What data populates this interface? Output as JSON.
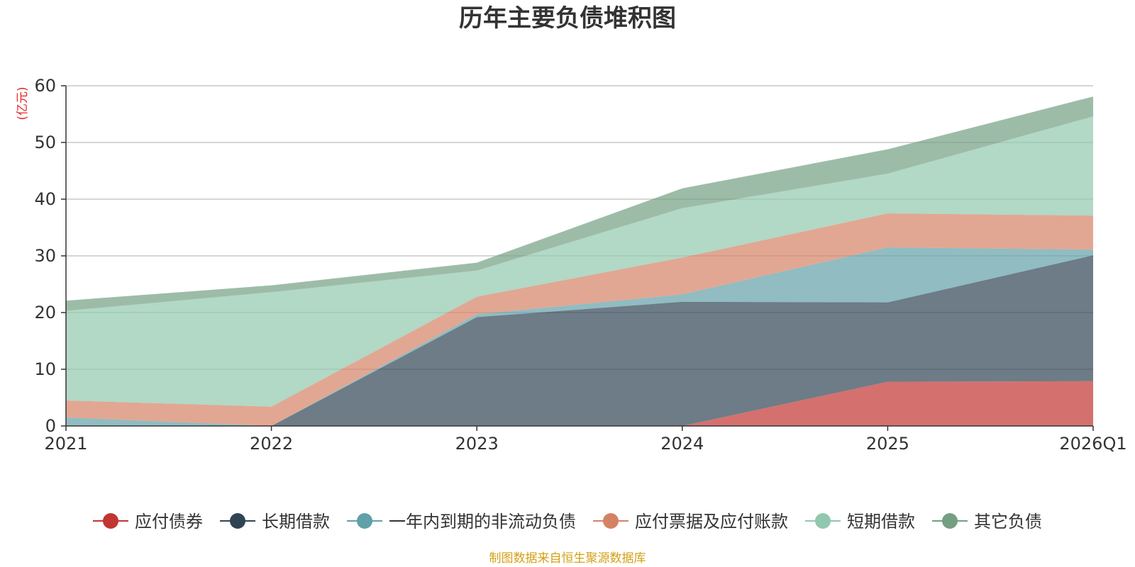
{
  "chart_data": {
    "type": "area",
    "stacked": true,
    "title": "历年主要负债堆积图",
    "unit_label": "(亿元)",
    "categories": [
      "2021",
      "2022",
      "2023",
      "2024",
      "2025",
      "2026Q1"
    ],
    "ylim": [
      0,
      60
    ],
    "yticks": [
      0,
      10,
      20,
      30,
      40,
      50,
      60
    ],
    "grid": true,
    "legend_position": "bottom",
    "series": [
      {
        "name": "应付债券",
        "color": "#c23531",
        "values": [
          0,
          0,
          0,
          0,
          7.8,
          7.9
        ]
      },
      {
        "name": "长期借款",
        "color": "#2f4554",
        "values": [
          0,
          0,
          19.2,
          21.9,
          14.0,
          22.2
        ]
      },
      {
        "name": "一年内到期的非流动负债",
        "color": "#61a0a8",
        "values": [
          1.5,
          0,
          0.5,
          1.3,
          9.7,
          1.0
        ]
      },
      {
        "name": "应付票据及应付账款",
        "color": "#d48265",
        "values": [
          3.0,
          3.4,
          3.1,
          6.5,
          6.0,
          6.0
        ]
      },
      {
        "name": "短期借款",
        "color": "#91c7ae",
        "values": [
          15.8,
          20.2,
          4.6,
          8.7,
          7.0,
          17.5
        ]
      },
      {
        "name": "其它负债",
        "color": "#749f83",
        "values": [
          1.8,
          1.2,
          1.4,
          3.5,
          4.3,
          3.5
        ]
      }
    ],
    "source_note": "制图数据来自恒生聚源数据库",
    "colors": {
      "unit_label": "#e8262b",
      "source_note": "#d4a017",
      "axis": "#333333",
      "grid": "#c8c8c8"
    }
  }
}
